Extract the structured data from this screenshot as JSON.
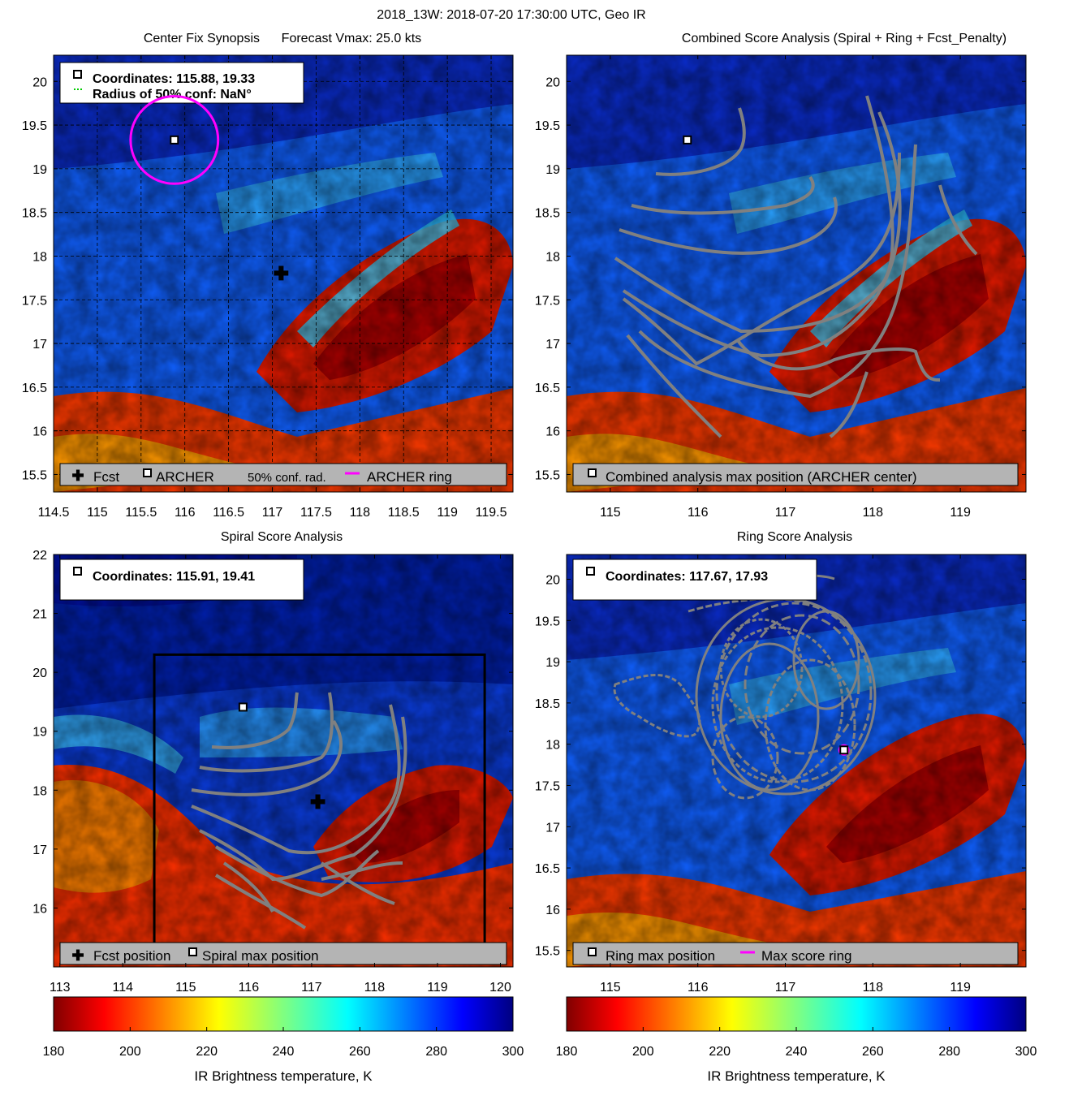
{
  "suptitle": "2018_13W: 2018-07-20 17:30:00 UTC, Geo IR",
  "colors": {
    "frame": "#000000",
    "legend_bg": "#b4b4b4",
    "ring": "#ff00ff",
    "conf": "#00cc00",
    "contour": "#808080"
  },
  "chart_data": [
    {
      "type": "heatmap",
      "id": "center-fix",
      "title": "Center Fix Synopsis      Forecast Vmax: 25.0 kts",
      "xlim": [
        114.5,
        119.75
      ],
      "ylim": [
        15.3,
        20.3
      ],
      "xticks": [
        114.5,
        115,
        115.5,
        116,
        116.5,
        117,
        117.5,
        118,
        118.5,
        119,
        119.5
      ],
      "yticks": [
        15.5,
        16,
        16.5,
        17,
        17.5,
        18,
        18.5,
        19,
        19.5,
        20
      ],
      "grid": true,
      "archer_center": {
        "lon": 115.88,
        "lat": 19.33
      },
      "forecast_position": {
        "lon": 117.1,
        "lat": 17.8
      },
      "ring_radius_deg": 0.5,
      "info_box": {
        "coordinates": "Coordinates: 115.88, 19.33",
        "radius": "Radius of 50% conf: NaN°"
      },
      "legend": [
        "Fcst",
        "ARCHER",
        "50% conf. rad.",
        "ARCHER ring"
      ]
    },
    {
      "type": "heatmap",
      "id": "combined",
      "title": "Combined Score Analysis (Spiral + Ring + Fcst_Penalty)",
      "xlim": [
        114.5,
        119.75
      ],
      "ylim": [
        15.3,
        20.3
      ],
      "xticks": [
        115,
        116,
        117,
        118,
        119
      ],
      "yticks": [
        15.5,
        16,
        16.5,
        17,
        17.5,
        18,
        18.5,
        19,
        19.5,
        20
      ],
      "grid": false,
      "max_position": {
        "lon": 115.88,
        "lat": 19.33
      },
      "legend": [
        "Combined analysis max position (ARCHER center)"
      ]
    },
    {
      "type": "heatmap",
      "id": "spiral",
      "title": "Spiral Score Analysis",
      "xlim": [
        112.9,
        120.2
      ],
      "ylim": [
        15.0,
        22.0
      ],
      "xticks": [
        113,
        114,
        115,
        116,
        117,
        118,
        119,
        120
      ],
      "yticks": [
        16,
        17,
        18,
        19,
        20,
        21,
        22
      ],
      "grid": false,
      "max_position": {
        "lon": 115.91,
        "lat": 19.41
      },
      "forecast_position": {
        "lon": 117.1,
        "lat": 17.8
      },
      "analysis_box": {
        "lon": [
          114.5,
          119.75
        ],
        "lat": [
          15.3,
          20.3
        ]
      },
      "info_box": {
        "coordinates": "Coordinates: 115.91, 19.41"
      },
      "legend": [
        "Fcst position",
        "Spiral max position"
      ]
    },
    {
      "type": "heatmap",
      "id": "ring",
      "title": "Ring Score Analysis",
      "xlim": [
        114.5,
        119.75
      ],
      "ylim": [
        15.3,
        20.3
      ],
      "xticks": [
        115,
        116,
        117,
        118,
        119
      ],
      "yticks": [
        15.5,
        16,
        16.5,
        17,
        17.5,
        18,
        18.5,
        19,
        19.5,
        20
      ],
      "grid": false,
      "max_position": {
        "lon": 117.67,
        "lat": 17.93
      },
      "info_box": {
        "coordinates": "Coordinates: 117.67, 17.93"
      },
      "legend": [
        "Ring max position",
        "Max score ring"
      ]
    }
  ],
  "colorbars": [
    {
      "id": "cbar-left",
      "ticks": [
        180,
        200,
        220,
        240,
        260,
        280,
        300
      ],
      "label": "IR Brightness temperature, K"
    },
    {
      "id": "cbar-right",
      "ticks": [
        180,
        200,
        220,
        240,
        260,
        280,
        300
      ],
      "label": "IR Brightness temperature, K"
    }
  ]
}
